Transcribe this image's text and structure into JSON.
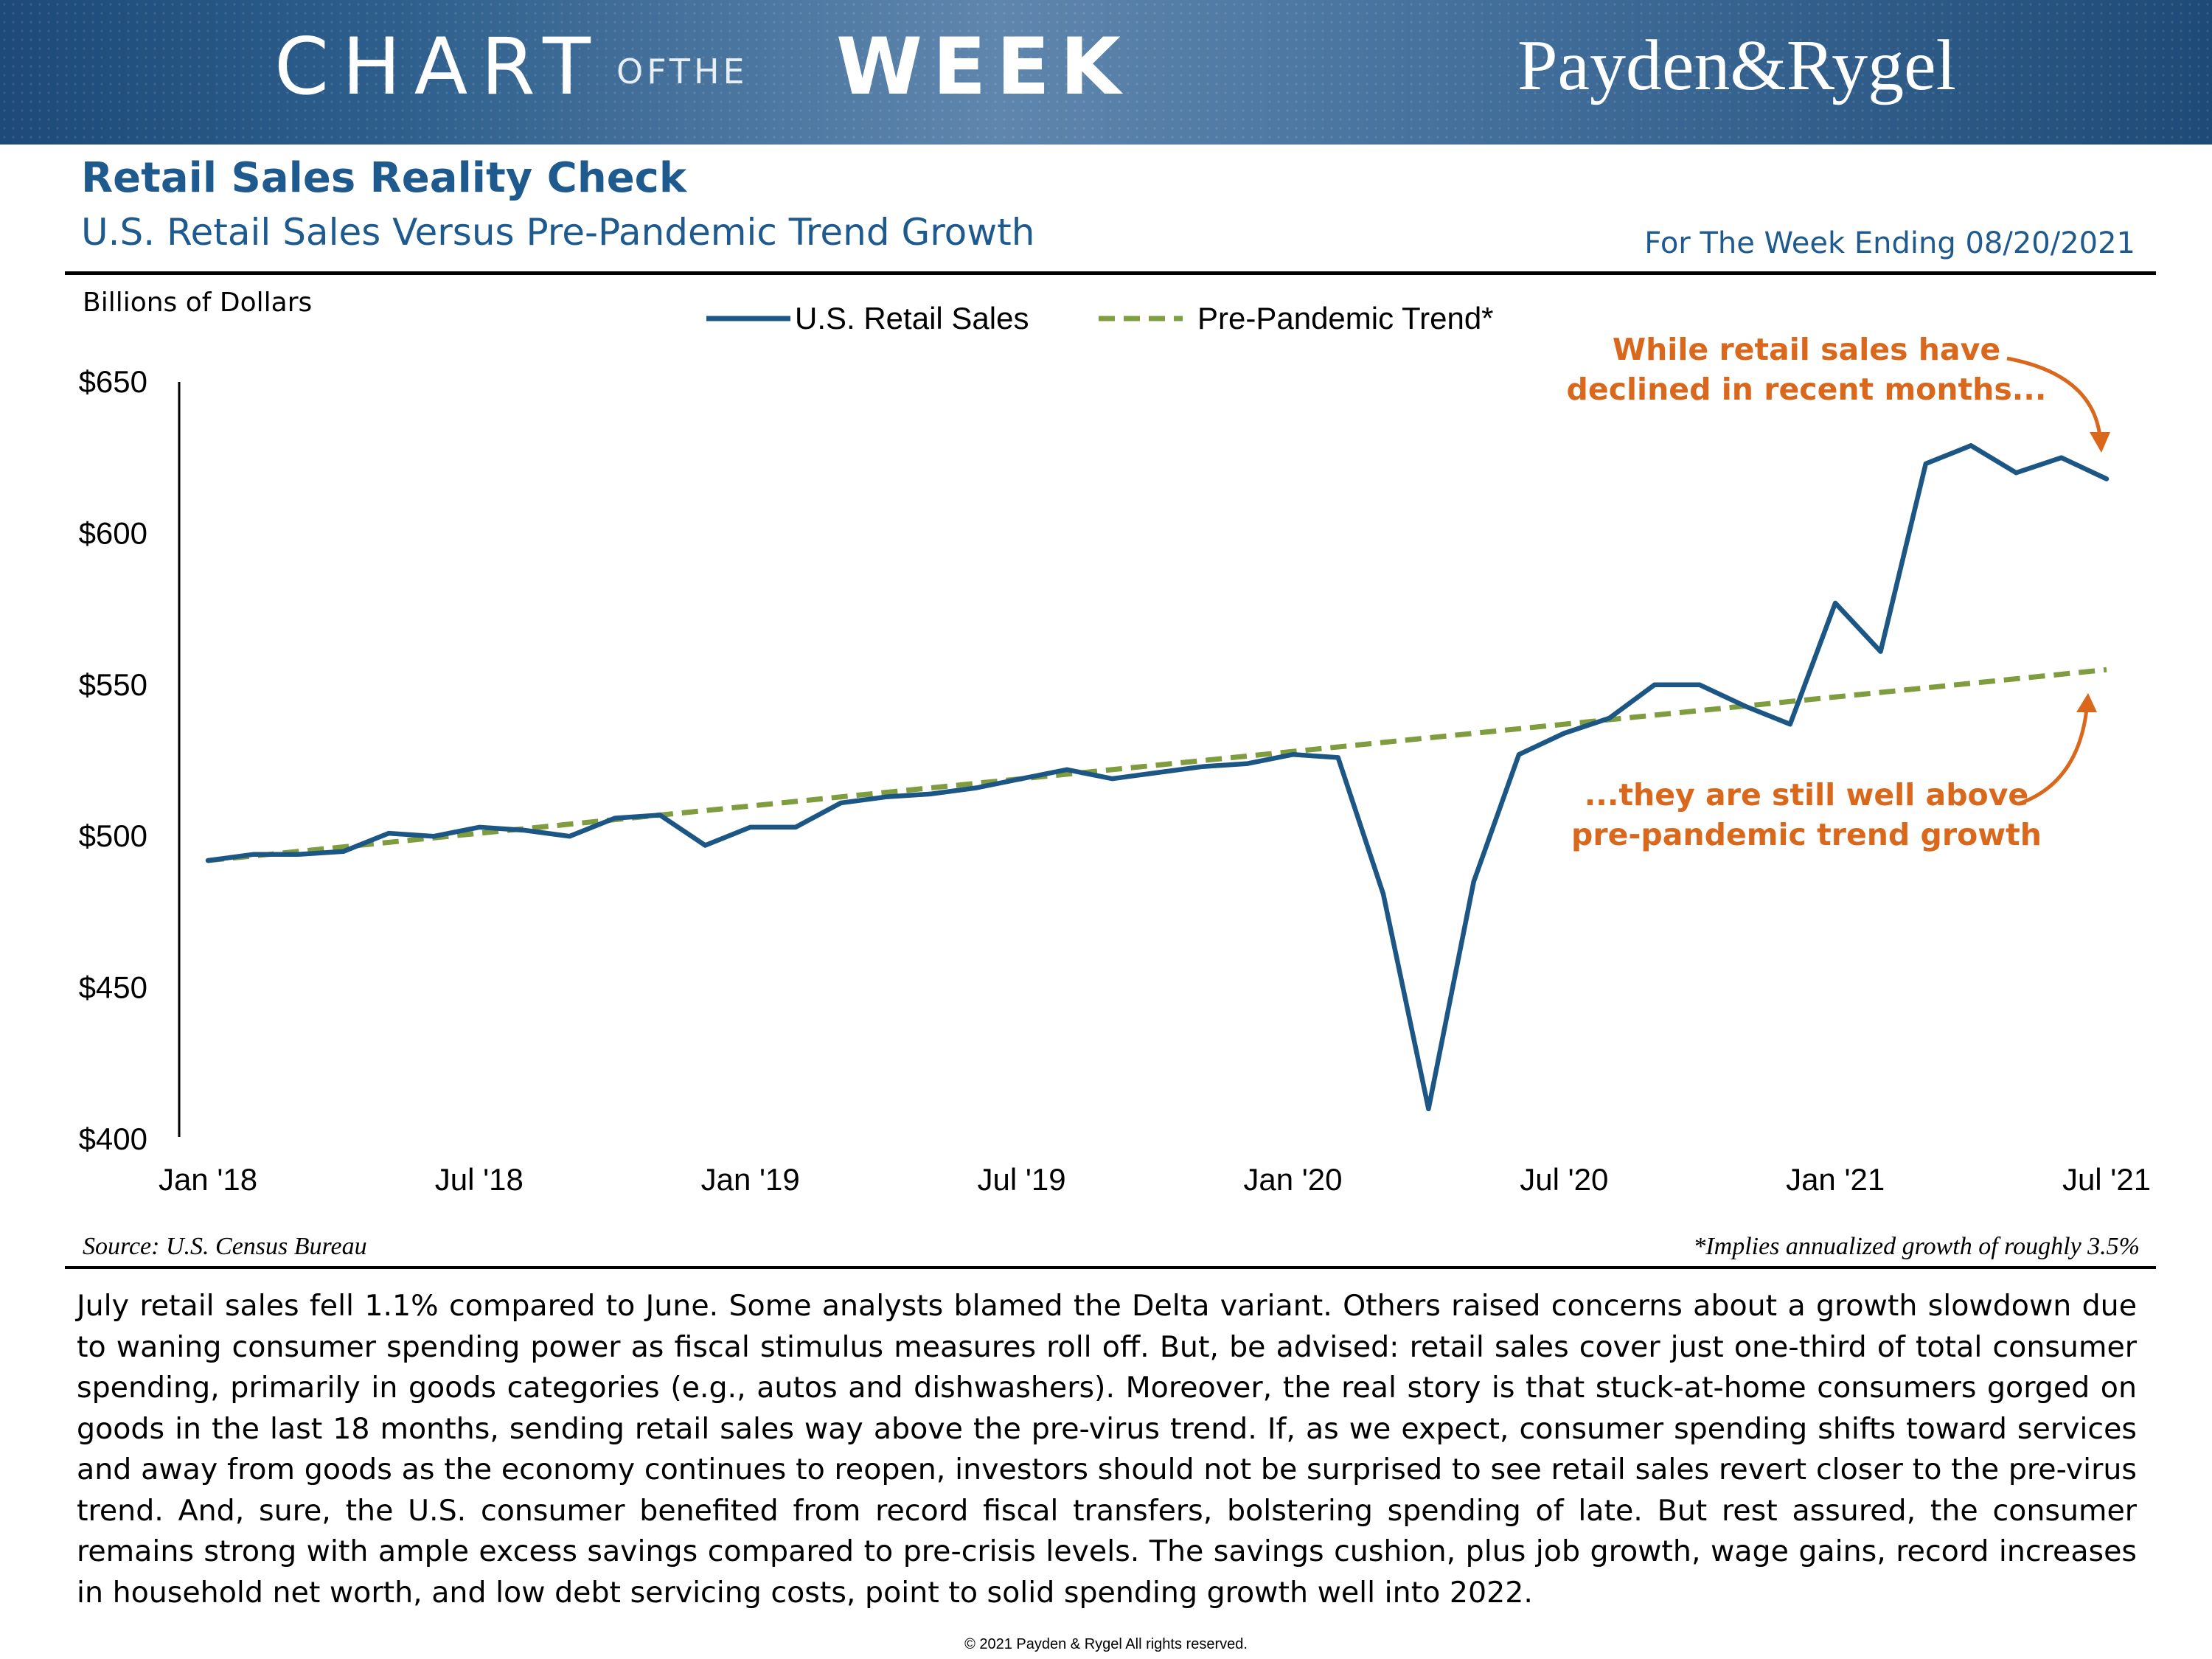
{
  "banner": {
    "chart_word": "CHART",
    "ofthe_word": "OFTHE",
    "week_word": "WEEK",
    "firm_name": "Payden&Rygel"
  },
  "header": {
    "title": "Retail Sales Reality Check",
    "subtitle": "U.S. Retail Sales Versus Pre-Pandemic Trend Growth",
    "week_ending": "For The Week Ending 08/20/2021"
  },
  "colors": {
    "navy": "#1f5a8f",
    "series_sales": "#1c5685",
    "series_trend": "#7f9c3f",
    "annotation": "#d9671c"
  },
  "chart_data": {
    "type": "line",
    "unit_label": "Billions of Dollars",
    "ylim": [
      400,
      650
    ],
    "y_ticks": [
      400,
      450,
      500,
      550,
      600,
      650
    ],
    "y_tick_labels": [
      "$400",
      "$450",
      "$500",
      "$550",
      "$600",
      "$650"
    ],
    "x_tick_indices": [
      0,
      6,
      12,
      18,
      24,
      30,
      36,
      42
    ],
    "x_tick_labels": [
      "Jan '18",
      "Jul '18",
      "Jan '19",
      "Jul '19",
      "Jan '20",
      "Jul '20",
      "Jan '21",
      "Jul '21"
    ],
    "x_count": 43,
    "legend_position": "top-center",
    "grid": false,
    "series": [
      {
        "name": "U.S. Retail Sales",
        "style": "solid",
        "values": [
          492,
          494,
          494,
          495,
          501,
          500,
          503,
          502,
          500,
          506,
          507,
          497,
          503,
          503,
          511,
          513,
          514,
          516,
          519,
          522,
          519,
          521,
          523,
          524,
          527,
          526,
          481,
          410,
          485,
          527,
          534,
          539,
          550,
          550,
          543,
          537,
          577,
          561,
          623,
          629,
          620,
          625,
          618
        ]
      },
      {
        "name": "Pre-Pandemic Trend*",
        "style": "dashed",
        "start_value": 492,
        "end_value": 555
      }
    ],
    "annotations": [
      {
        "line1": "While retail sales have",
        "line2": "declined in recent months..."
      },
      {
        "line1": "...they are still well above",
        "line2": "pre-pandemic trend growth"
      }
    ]
  },
  "footer": {
    "source": "Source: U.S. Census Bureau",
    "footnote": "*Implies annualized growth of roughly 3.5%",
    "commentary": "July retail sales fell 1.1% compared to June. Some analysts blamed the Delta variant. Others raised concerns about a growth slowdown due to waning consumer spending power as fiscal stimulus measures roll off. But, be advised: retail sales cover just one-third of total consumer spending, primarily in goods categories (e.g., autos and dishwashers). Moreover, the real story is that stuck-at-home consumers gorged on goods in the last 18 months, sending retail sales way above the pre-virus trend. If, as we expect, consumer spending shifts toward services and away from goods as the economy continues to reopen, investors should not be surprised to see retail sales revert closer to the pre-virus trend. And, sure, the U.S. consumer benefited from record fiscal transfers, bolstering spending of late. But rest assured, the consumer remains strong with ample excess savings compared to pre-crisis levels. The savings cushion, plus job growth, wage gains, record increases in household net worth, and low debt servicing costs, point to solid spending growth well into 2022.",
    "copyright": "© 2021 Payden & Rygel All rights reserved."
  }
}
